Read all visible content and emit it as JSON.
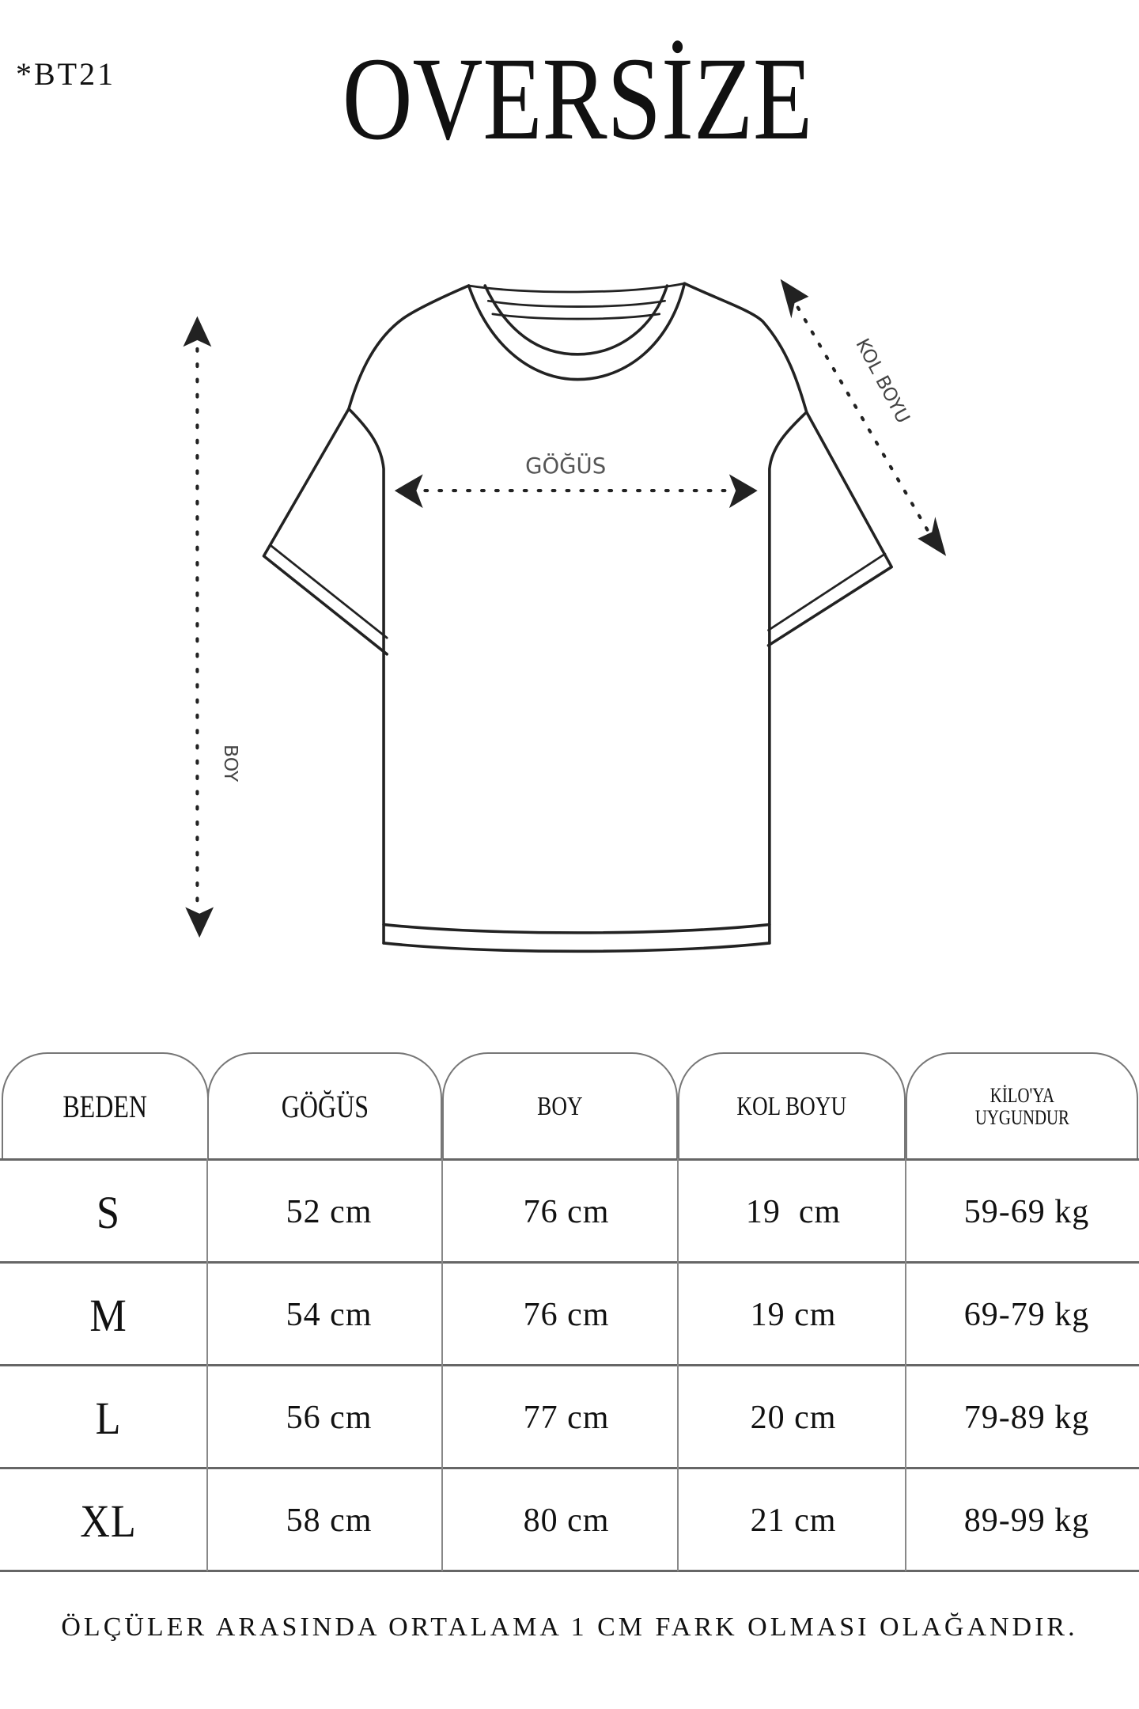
{
  "header": {
    "code": "*BT21",
    "title": "OVERSİZE"
  },
  "diagram": {
    "chest_label": "GÖĞÜS",
    "length_label": "BOY",
    "sleeve_label": "KOL BOYU"
  },
  "table": {
    "headers": [
      "BEDEN",
      "GÖĞÜS",
      "BOY",
      "KOL BOYU",
      "KİLO'YA UYGUNDUR"
    ],
    "header_kilo_lines": [
      "KİLO'YA",
      "UYGUNDUR"
    ],
    "rows": [
      [
        "S",
        "52 cm",
        "76 cm",
        "19  cm",
        "59-69 kg"
      ],
      [
        "M",
        "54 cm",
        "76 cm",
        "19 cm",
        "69-79 kg"
      ],
      [
        "L",
        "56 cm",
        "77 cm",
        "20 cm",
        "79-89 kg"
      ],
      [
        "XL",
        "58 cm",
        "80 cm",
        "21 cm",
        "89-99 kg"
      ]
    ]
  },
  "footer": {
    "note": "ÖLÇÜLER ARASINDA ORTALAMA 1 CM FARK OLMASI OLAĞANDIR."
  }
}
